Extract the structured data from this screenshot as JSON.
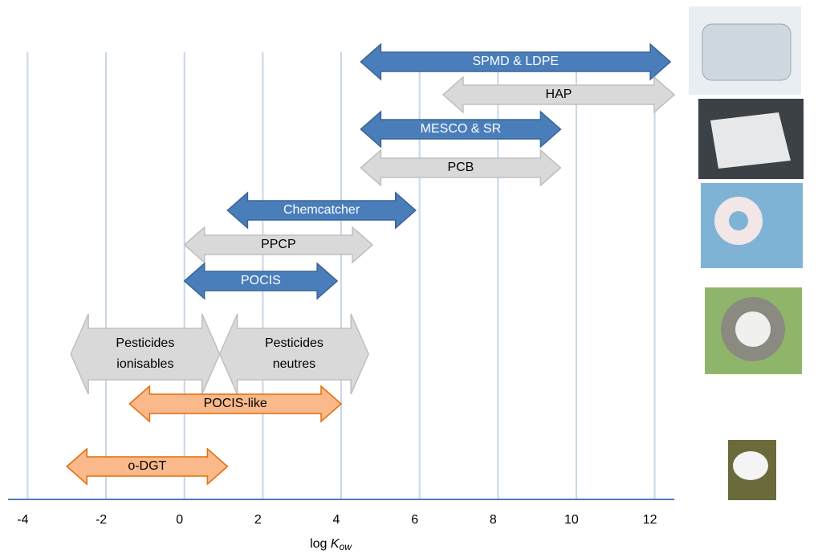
{
  "chart_data": {
    "type": "range-arrows",
    "xlabel": [
      "log",
      "K",
      "ow"
    ],
    "xlim": [
      -4.5,
      12.5
    ],
    "xticks": [
      -4,
      -2,
      0,
      2,
      4,
      6,
      8,
      10,
      12
    ],
    "grid": true,
    "series": [
      {
        "label": [
          "SPMD & LDPE"
        ],
        "start": 4.5,
        "end": 12.4,
        "color": "#4a7ebb"
      },
      {
        "label": [
          "HAP"
        ],
        "start": 6.6,
        "end": 12.5,
        "color": "#d9d9d9"
      },
      {
        "label": [
          "MESCO & SR"
        ],
        "start": 4.5,
        "end": 9.6,
        "color": "#4a7ebb"
      },
      {
        "label": [
          "PCB"
        ],
        "start": 4.5,
        "end": 9.6,
        "color": "#d9d9d9"
      },
      {
        "label": [
          "Chemcatcher"
        ],
        "start": 1.1,
        "end": 5.9,
        "color": "#4a7ebb"
      },
      {
        "label": [
          "PPCP"
        ],
        "start": 0,
        "end": 4.8,
        "color": "#d9d9d9"
      },
      {
        "label": [
          "POCIS"
        ],
        "start": 0,
        "end": 3.9,
        "color": "#4a7ebb"
      },
      {
        "label": [
          "Pesticides",
          "ionisables"
        ],
        "start": -2.9,
        "end": 0.9,
        "color": "#d9d9d9"
      },
      {
        "label": [
          "Pesticides",
          "neutres"
        ],
        "start": 0.9,
        "end": 4.7,
        "color": "#d9d9d9"
      },
      {
        "label": [
          "POCIS-like"
        ],
        "start": -1.4,
        "end": 4.0,
        "color": "#f9b98a"
      },
      {
        "label": [
          "o-DGT"
        ],
        "start": -3.0,
        "end": 1.1,
        "color": "#f9b98a"
      }
    ]
  }
}
